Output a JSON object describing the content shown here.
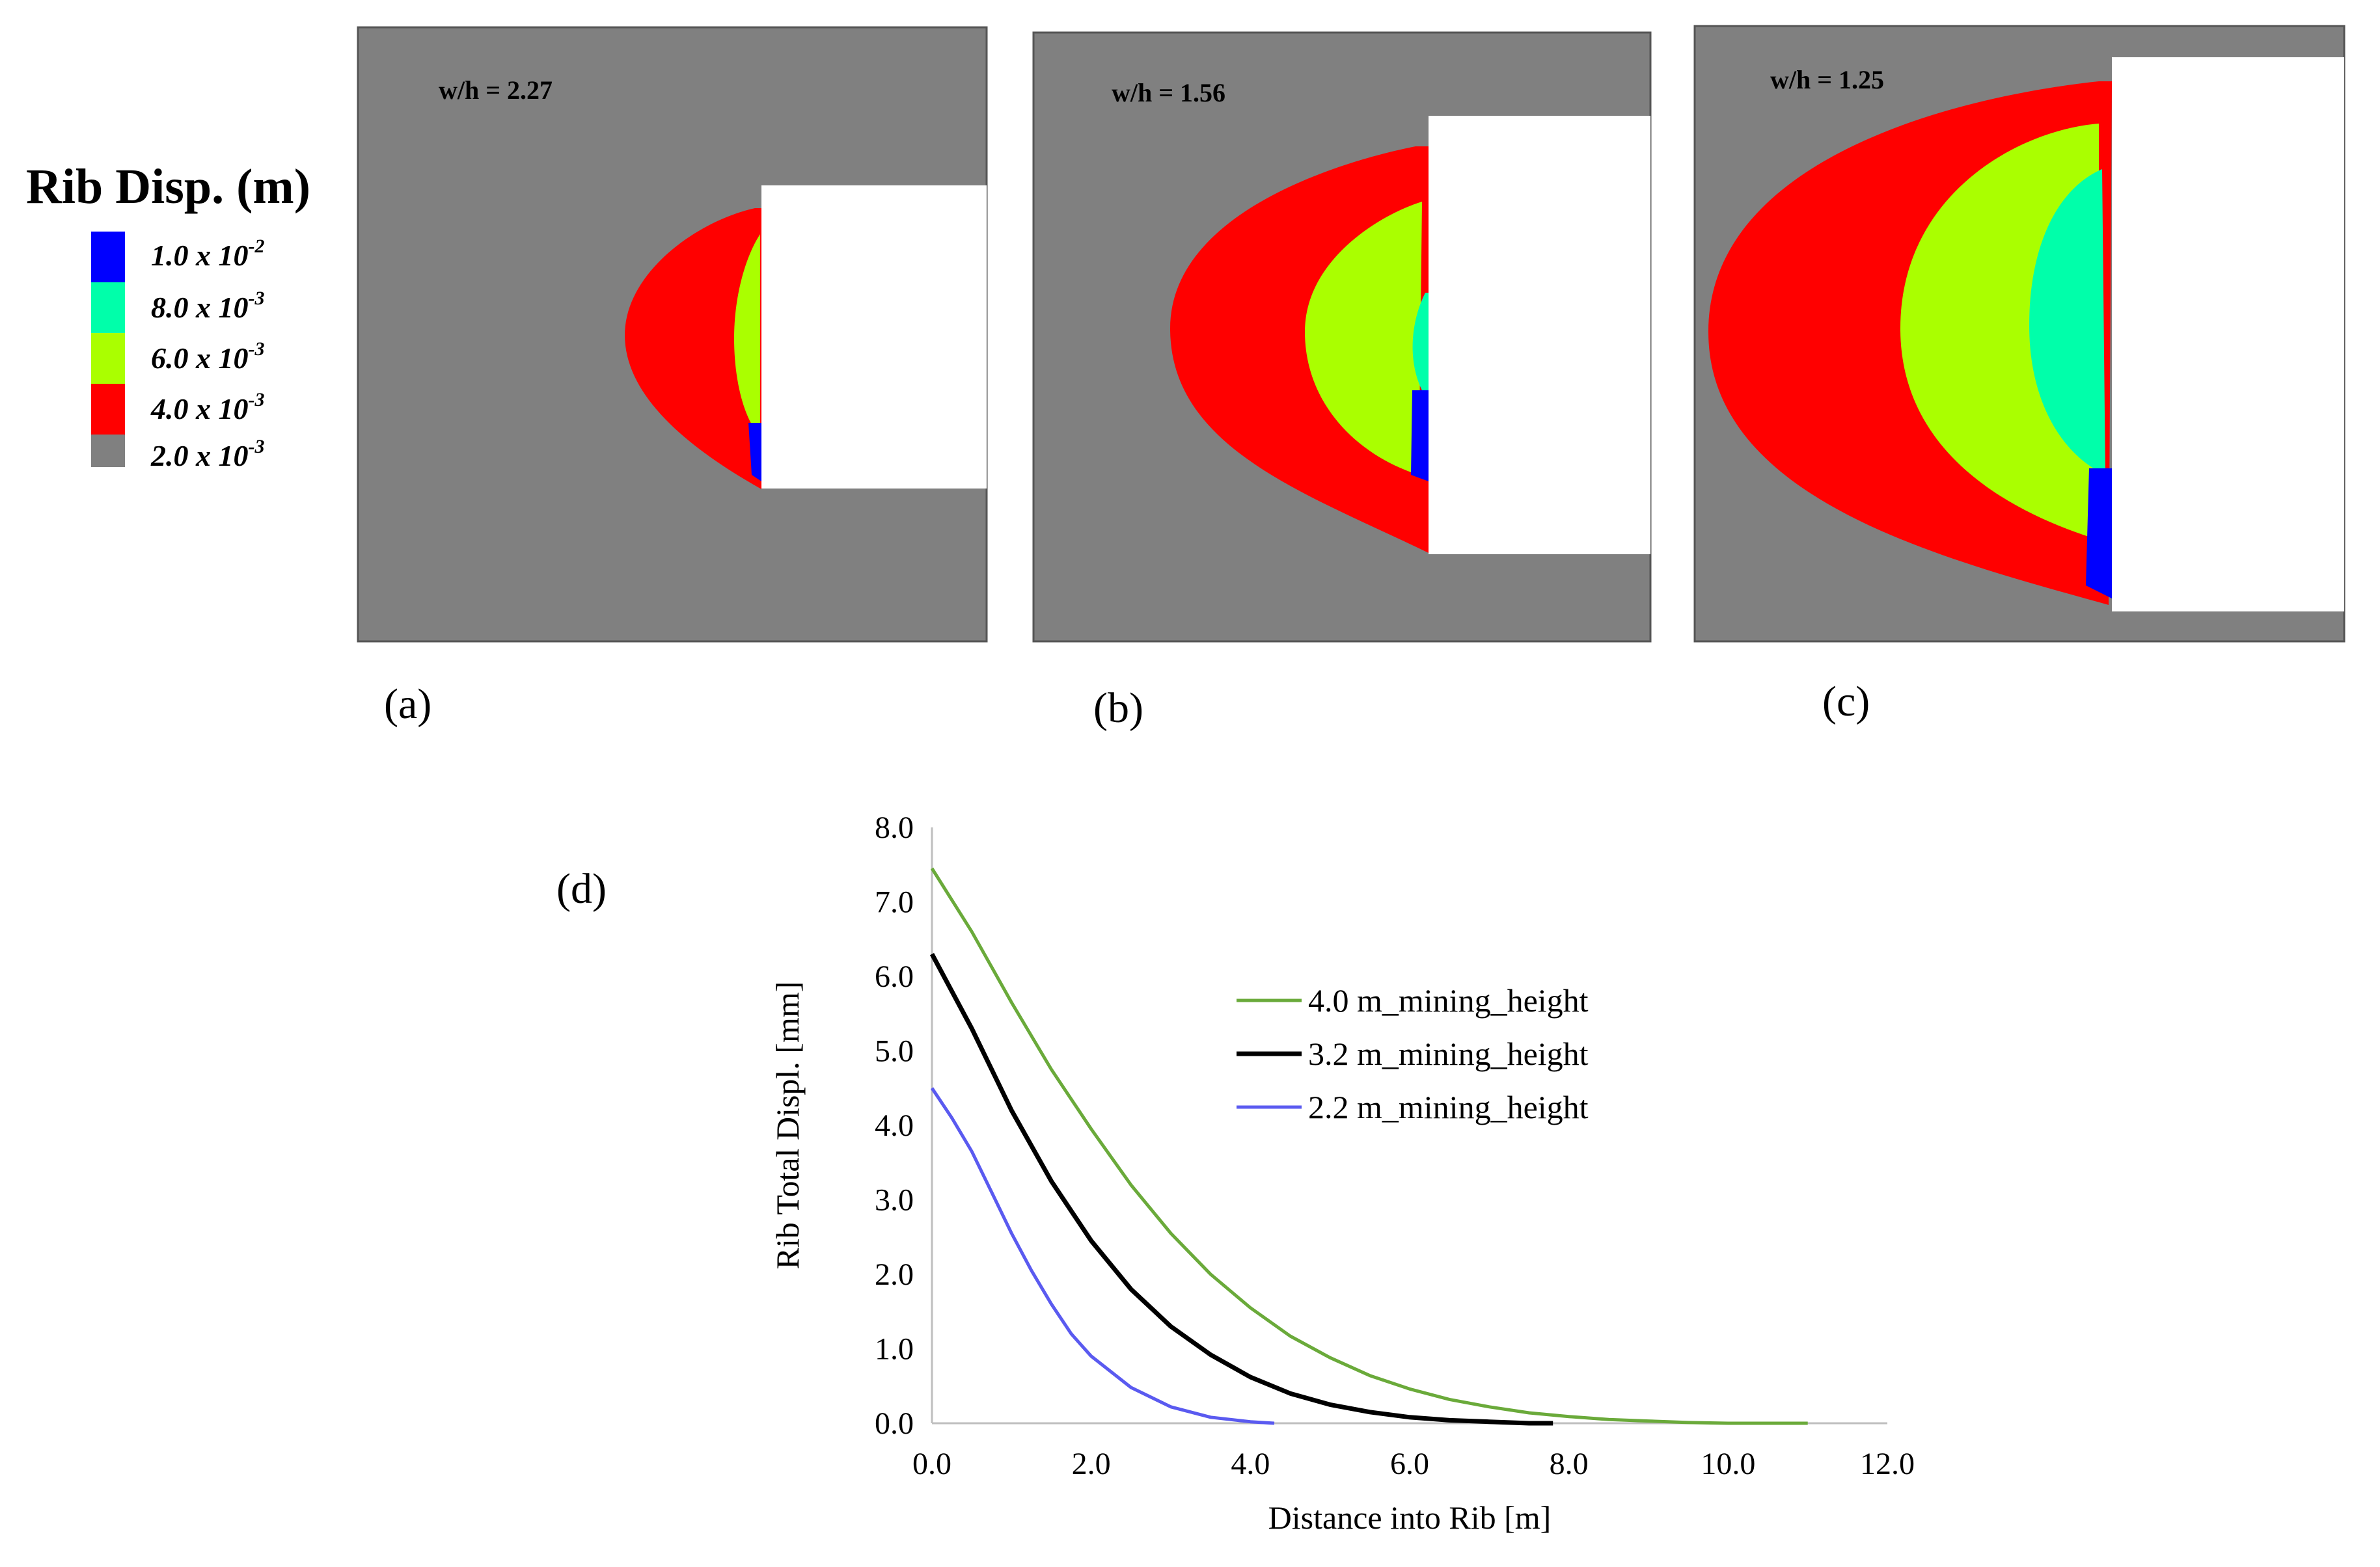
{
  "contour_legend": {
    "title": "Rib Disp. (m)",
    "entries": [
      {
        "mantissa": "1.0 x 10",
        "exponent": "-2",
        "color": "#0000ff"
      },
      {
        "mantissa": "8.0 x 10",
        "exponent": "-3",
        "color": "#00ffaa"
      },
      {
        "mantissa": "6.0 x 10",
        "exponent": "-3",
        "color": "#aaff00"
      },
      {
        "mantissa": "4.0 x 10",
        "exponent": "-3",
        "color": "#ff0000"
      },
      {
        "mantissa": "2.0 x 10",
        "exponent": "-3",
        "color": "#808080"
      }
    ]
  },
  "panels": [
    {
      "label": "(a)",
      "wh_text": "w/h = 2.27"
    },
    {
      "label": "(b)",
      "wh_text": "w/h = 1.56"
    },
    {
      "label": "(c)",
      "wh_text": "w/h = 1.25"
    }
  ],
  "chart_data": {
    "type": "line",
    "panel_label": "(d)",
    "title": "",
    "xlabel": "Distance into Rib [m]",
    "ylabel": "Rib Total Displ. [mm]",
    "xlim": [
      0,
      12
    ],
    "ylim": [
      0,
      8
    ],
    "xticks": [
      "0.0",
      "2.0",
      "4.0",
      "6.0",
      "8.0",
      "10.0",
      "12.0"
    ],
    "yticks": [
      "0.0",
      "1.0",
      "2.0",
      "3.0",
      "4.0",
      "5.0",
      "6.0",
      "7.0",
      "8.0"
    ],
    "legend_position": "top-right",
    "series": [
      {
        "name": "4.0 m_mining_height",
        "color": "#6aaa3a",
        "x": [
          0,
          0.5,
          1,
          1.5,
          2,
          2.5,
          3,
          3.5,
          4,
          4.5,
          5,
          5.5,
          6,
          6.5,
          7,
          7.5,
          8,
          8.5,
          9,
          9.5,
          10,
          10.5,
          11
        ],
        "y": [
          7.45,
          6.6,
          5.65,
          4.75,
          3.95,
          3.2,
          2.55,
          2.0,
          1.55,
          1.17,
          0.88,
          0.64,
          0.46,
          0.32,
          0.22,
          0.14,
          0.09,
          0.05,
          0.03,
          0.01,
          0.0,
          0.0,
          0.0
        ]
      },
      {
        "name": "3.2 m_mining_height",
        "color": "#000000",
        "x": [
          0,
          0.5,
          1,
          1.5,
          2,
          2.5,
          3,
          3.5,
          4,
          4.5,
          5,
          5.5,
          6,
          6.5,
          7,
          7.5,
          7.8
        ],
        "y": [
          6.3,
          5.3,
          4.2,
          3.25,
          2.45,
          1.8,
          1.3,
          0.92,
          0.62,
          0.4,
          0.25,
          0.15,
          0.08,
          0.04,
          0.02,
          0.0,
          0.0
        ]
      },
      {
        "name": "2.2 m_mining_height",
        "color": "#5a5af0",
        "x": [
          0,
          0.25,
          0.5,
          0.75,
          1,
          1.25,
          1.5,
          1.75,
          2,
          2.5,
          3,
          3.5,
          4,
          4.3
        ],
        "y": [
          4.5,
          4.1,
          3.65,
          3.1,
          2.55,
          2.05,
          1.6,
          1.2,
          0.9,
          0.48,
          0.22,
          0.08,
          0.02,
          0.0
        ]
      }
    ]
  }
}
